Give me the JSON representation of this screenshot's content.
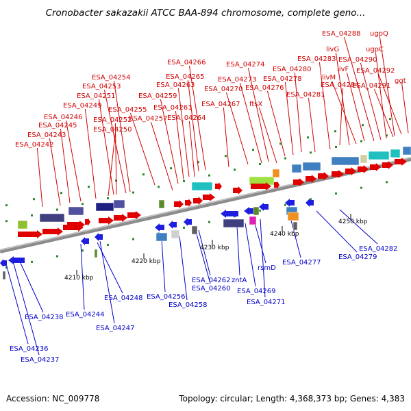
{
  "title": "Cronobacter sakazakii ATCC BAA-894 chromosome, complete geno...",
  "footer": {
    "accession": "Accession: NC_009778",
    "topology": "Topology: circular; Length: 4,368,373 bp; Genes: 4,383"
  },
  "ticks": [
    "4210 kbp",
    "4220 kbp",
    "4230 kbp",
    "4240 kbp",
    "4250 kbp"
  ],
  "colors": {
    "forward_label": "#d00000",
    "reverse_label": "#0000c8",
    "forward_arrow": "#e00000",
    "reverse_arrow": "#1e1ee0",
    "backbone": "#909090"
  },
  "forward_labels": [
    "ESA_04242",
    "ESA_04243",
    "ESA_04245",
    "ESA_04246",
    "ESA_04249",
    "ESA_04250",
    "ESA_04251",
    "ESA_04252",
    "ESA_04253",
    "ESA_04254",
    "ESA_04255",
    "ESA_04257",
    "ESA_04259",
    "ESA_04261",
    "ESA_04263",
    "ESA_04264",
    "ESA_04265",
    "ESA_04266",
    "ESA_04267",
    "ESA_04270",
    "ESA_04273",
    "ESA_04274",
    "ftsX",
    "ESA_04276",
    "ESA_04278",
    "ESA_04280",
    "ESA_04281",
    "ESA_04283",
    "ESA_04284",
    "livG",
    "livM",
    "livF",
    "ESA_04288",
    "ESA_04290",
    "ugpC",
    "ESA_04291",
    "ugpQ",
    "ESA_04292",
    "ggt"
  ],
  "reverse_labels": [
    "ESA_04236",
    "ESA_04237",
    "ESA_04238",
    "ESA_04244",
    "ESA_04247",
    "ESA_04248",
    "ESA_04256",
    "ESA_04258",
    "ESA_04260",
    "ESA_04262",
    "zntA",
    "ESA_04269",
    "rsmD",
    "ESA_04271",
    "ESA_04277",
    "ESA_04279",
    "ESA_04282"
  ]
}
